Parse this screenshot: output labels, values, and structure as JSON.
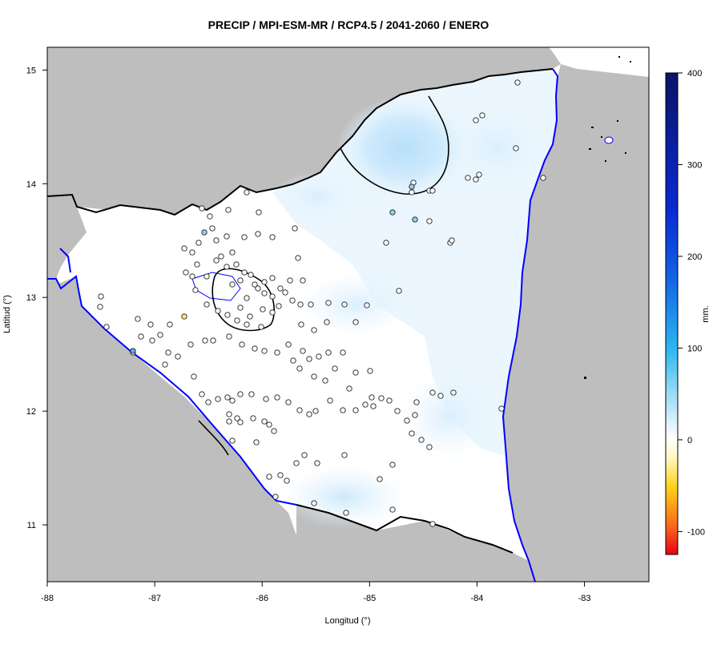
{
  "title": "PRECIP / MPI-ESM-MR / RCP4.5 / 2041-2060 / ENERO",
  "x_axis": {
    "label": "Longitud (°)",
    "ticks": [
      "-88",
      "-87",
      "-86",
      "-85",
      "-84",
      "-83"
    ],
    "range": [
      -88.0,
      -82.4
    ]
  },
  "y_axis": {
    "label": "Latitud (°)",
    "ticks": [
      "11",
      "12",
      "13",
      "14",
      "15"
    ],
    "range": [
      10.5,
      15.2
    ]
  },
  "colorbar": {
    "unit_label": "mm.",
    "ticks": [
      "400",
      "300",
      "200",
      "100",
      "0",
      "-100"
    ],
    "range": [
      -125,
      400
    ],
    "colors": [
      "#d7191c",
      "#fdae61",
      "#ffff00",
      "#ffffff",
      "#00bfff",
      "#0000ff",
      "#00007f"
    ]
  },
  "colors": {
    "land_outside": "#bebebe",
    "country_border": "#000000",
    "coastline": "#0000ff",
    "contour_line": "#000000"
  }
}
